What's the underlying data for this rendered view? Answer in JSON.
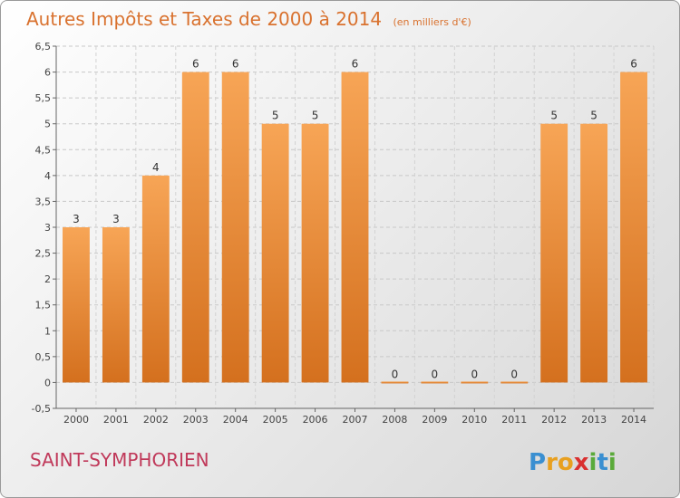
{
  "chart_data": {
    "type": "bar",
    "title": "Autres Impôts et Taxes de 2000 à 2014",
    "subtitle": "(en milliers d'€)",
    "categories": [
      "2000",
      "2001",
      "2002",
      "2003",
      "2004",
      "2005",
      "2006",
      "2007",
      "2008",
      "2009",
      "2010",
      "2011",
      "2012",
      "2013",
      "2014"
    ],
    "values": [
      3,
      3,
      4,
      6,
      6,
      5,
      5,
      6,
      0,
      0,
      0,
      0,
      5,
      5,
      6
    ],
    "ylim": [
      -0.5,
      6.5
    ],
    "yticks": [
      "-0,5",
      "0",
      "0,5",
      "1",
      "1,5",
      "2",
      "2,5",
      "3",
      "3,5",
      "4",
      "4,5",
      "5",
      "5,5",
      "6",
      "6,5"
    ],
    "grid": true,
    "bar_color": "#ef8c35"
  },
  "place_name": "SAINT-SYMPHORIEN",
  "logo": {
    "text": "Proxiti",
    "letters": [
      "P",
      "r",
      "o",
      "x",
      "i",
      "t",
      "i"
    ],
    "colors": [
      "#3a8fd1",
      "#e8a020",
      "#e8a020",
      "#d93030",
      "#5aaa3a",
      "#3a8fd1",
      "#5aaa3a"
    ]
  }
}
